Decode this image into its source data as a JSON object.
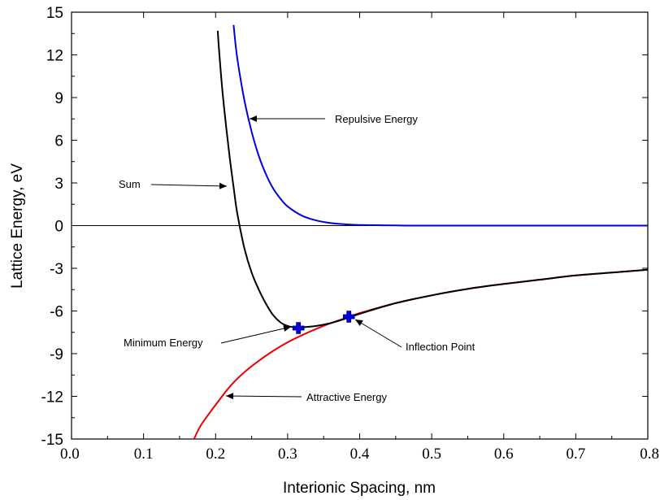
{
  "chart_data": {
    "type": "line",
    "xlabel": "Interionic Spacing, nm",
    "ylabel": "Lattice Energy, eV",
    "xlim": [
      0.0,
      0.8
    ],
    "ylim": [
      -15,
      15
    ],
    "x_ticks": [
      "0.0",
      "0.1",
      "0.2",
      "0.3",
      "0.4",
      "0.5",
      "0.6",
      "0.7",
      "0.8"
    ],
    "y_ticks": [
      "15",
      "12",
      "9",
      "6",
      "3",
      "0",
      "-3",
      "-6",
      "-9",
      "-12",
      "-15"
    ],
    "grid": false,
    "series": [
      {
        "name": "Repulsive Energy",
        "color": "#0000dd",
        "points": [
          [
            0.225,
            14.1
          ],
          [
            0.23,
            11.8
          ],
          [
            0.24,
            8.8
          ],
          [
            0.25,
            6.6
          ],
          [
            0.26,
            4.9
          ],
          [
            0.27,
            3.6
          ],
          [
            0.28,
            2.6
          ],
          [
            0.29,
            1.9
          ],
          [
            0.3,
            1.35
          ],
          [
            0.32,
            0.7
          ],
          [
            0.34,
            0.36
          ],
          [
            0.36,
            0.18
          ],
          [
            0.38,
            0.09
          ],
          [
            0.4,
            0.04
          ],
          [
            0.45,
            0.01
          ],
          [
            0.5,
            0.0
          ],
          [
            0.8,
            0.0
          ]
        ]
      },
      {
        "name": "Attractive Energy",
        "color": "#ee0000",
        "points": [
          [
            0.17,
            -15.0
          ],
          [
            0.18,
            -14.0
          ],
          [
            0.2,
            -12.6
          ],
          [
            0.22,
            -11.3
          ],
          [
            0.24,
            -10.3
          ],
          [
            0.26,
            -9.5
          ],
          [
            0.28,
            -8.8
          ],
          [
            0.3,
            -8.2
          ],
          [
            0.32,
            -7.7
          ],
          [
            0.34,
            -7.25
          ],
          [
            0.36,
            -6.85
          ],
          [
            0.38,
            -6.5
          ],
          [
            0.4,
            -6.15
          ],
          [
            0.45,
            -5.45
          ],
          [
            0.5,
            -4.9
          ],
          [
            0.55,
            -4.45
          ],
          [
            0.6,
            -4.1
          ],
          [
            0.65,
            -3.8
          ],
          [
            0.7,
            -3.5
          ],
          [
            0.75,
            -3.3
          ],
          [
            0.8,
            -3.1
          ]
        ]
      },
      {
        "name": "Sum",
        "color": "#000000",
        "points": [
          [
            0.203,
            13.7
          ],
          [
            0.205,
            12.2
          ],
          [
            0.21,
            9.2
          ],
          [
            0.215,
            6.8
          ],
          [
            0.22,
            4.6
          ],
          [
            0.225,
            2.7
          ],
          [
            0.23,
            0.9
          ],
          [
            0.24,
            -1.6
          ],
          [
            0.25,
            -3.3
          ],
          [
            0.26,
            -4.5
          ],
          [
            0.27,
            -5.5
          ],
          [
            0.28,
            -6.3
          ],
          [
            0.29,
            -6.8
          ],
          [
            0.3,
            -7.05
          ],
          [
            0.31,
            -7.15
          ],
          [
            0.32,
            -7.15
          ],
          [
            0.34,
            -7.05
          ],
          [
            0.36,
            -6.85
          ],
          [
            0.38,
            -6.55
          ],
          [
            0.4,
            -6.2
          ],
          [
            0.45,
            -5.45
          ],
          [
            0.5,
            -4.9
          ],
          [
            0.55,
            -4.45
          ],
          [
            0.6,
            -4.1
          ],
          [
            0.65,
            -3.8
          ],
          [
            0.7,
            -3.5
          ],
          [
            0.75,
            -3.3
          ],
          [
            0.8,
            -3.1
          ]
        ]
      }
    ],
    "zero_line": 0,
    "markers": [
      {
        "label": "Minimum Energy",
        "x": 0.315,
        "y": -7.2,
        "color": "#0000dd"
      },
      {
        "label": "Inflection Point",
        "x": 0.385,
        "y": -6.4,
        "color": "#0000dd"
      }
    ],
    "annotations": [
      {
        "text": "Repulsive Energy"
      },
      {
        "text": "Sum"
      },
      {
        "text": "Minimum Energy"
      },
      {
        "text": "Inflection Point"
      },
      {
        "text": "Attractive Energy"
      }
    ]
  }
}
